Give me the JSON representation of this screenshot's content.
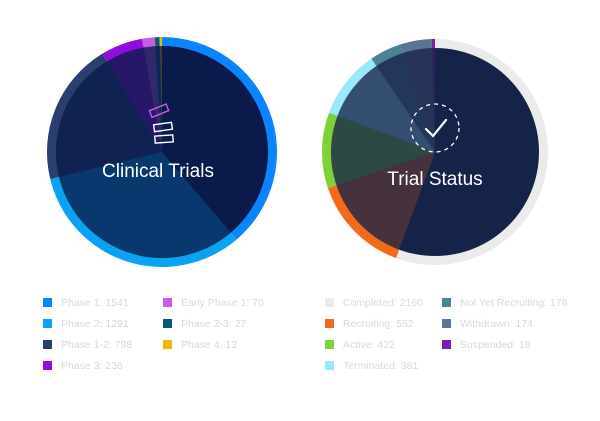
{
  "chart_data": [
    {
      "type": "pie",
      "title": "Clinical Trials",
      "icon": "stacked-bars-icon",
      "categories": [
        "Phase 1",
        "Phase 2",
        "Phase 1-2",
        "Phase 3",
        "Early Phase 1",
        "Phase 2-3",
        "Phase 4"
      ],
      "values": [
        1541,
        1291,
        798,
        236,
        70,
        27,
        13
      ],
      "colors": [
        "#0a84ff",
        "#0aa2f2",
        "#2a3f6e",
        "#8e0edb",
        "#c65ce8",
        "#0a5c74",
        "#f2b705"
      ],
      "legend_labels": [
        "Phase 1: 1541",
        "Phase 2: 1291",
        "Phase 1-2: 798",
        "Phase 3: 236",
        "Early Phase 1: 70",
        "Phase 2-3: 27",
        "Phase 4: 13"
      ]
    },
    {
      "type": "pie",
      "title": "Trial Status",
      "icon": "checkmark-circle-icon",
      "categories": [
        "Completed",
        "Recruiting",
        "Active",
        "Terminated",
        "Not Yet Recruiting",
        "Withdrawn",
        "Suspended"
      ],
      "values": [
        2160,
        552,
        422,
        381,
        178,
        174,
        18
      ],
      "colors": [
        "#ebebeb",
        "#f26a1b",
        "#7fd039",
        "#9be7fb",
        "#4d8195",
        "#5a7493",
        "#7a1fb3"
      ],
      "legend_labels": [
        "Completed: 2160",
        "Recruiting: 552",
        "Active: 422",
        "Terminated: 381",
        "Not Yet Recruiting: 178",
        "Withdrawn: 174",
        "Suspended: 18"
      ]
    }
  ],
  "colors": {
    "disc_primary": "#0a1a4a",
    "disc_secondary": "#162348",
    "legend_text": "#d6d8dc"
  }
}
